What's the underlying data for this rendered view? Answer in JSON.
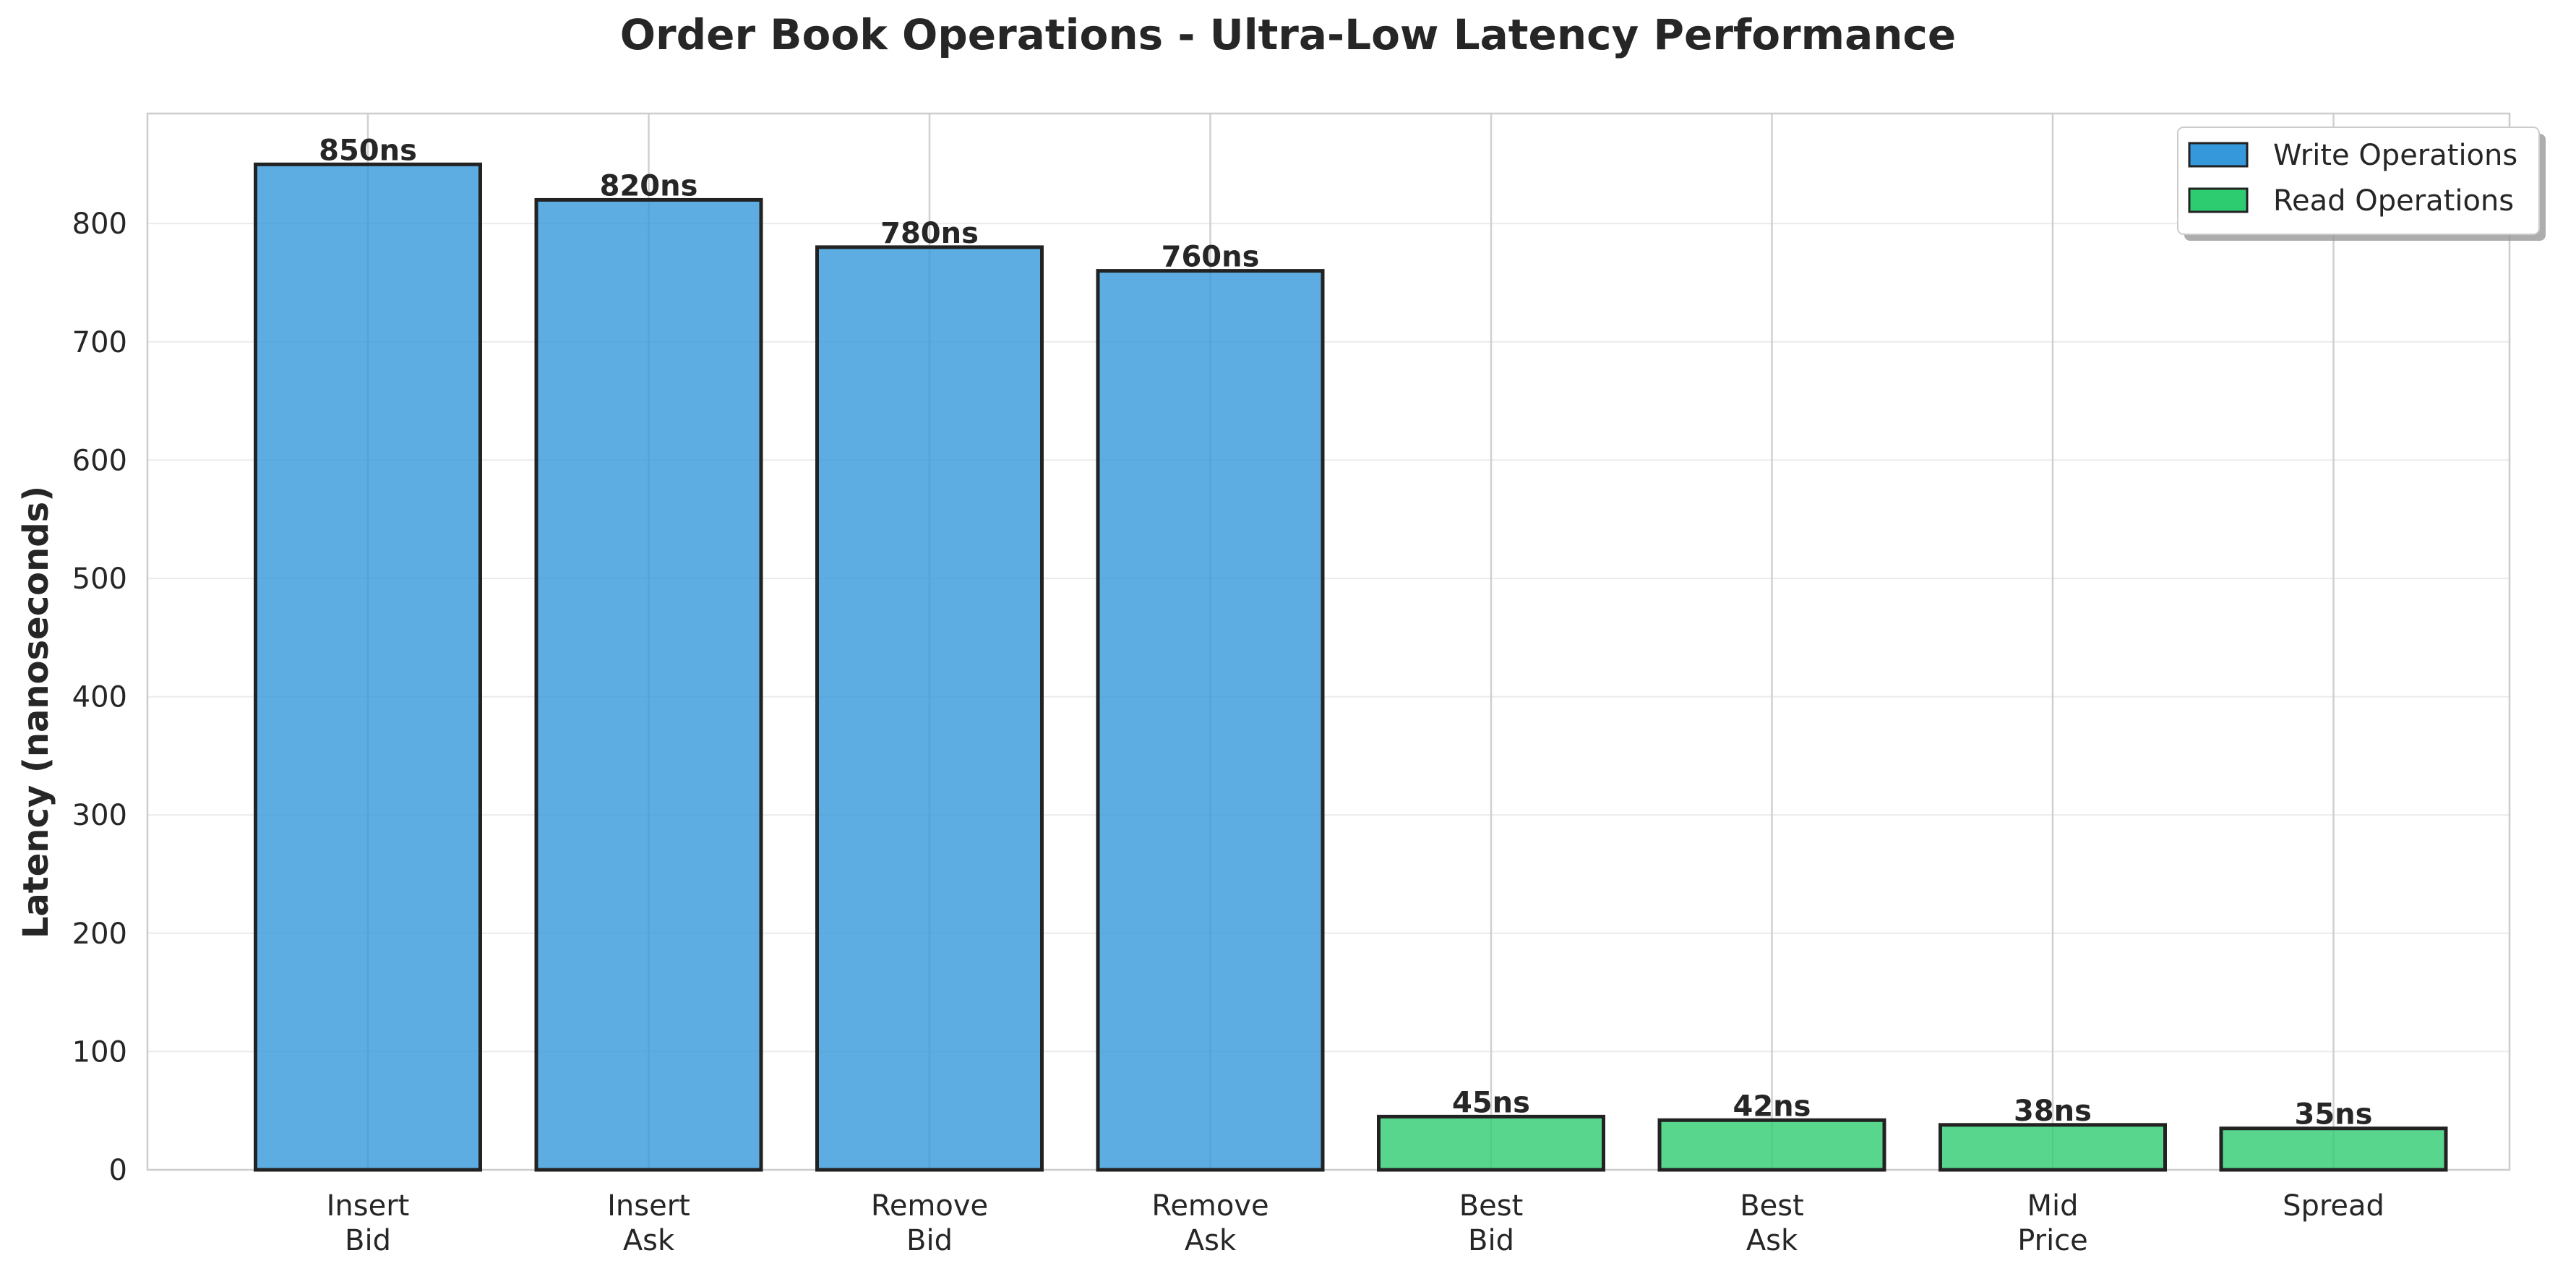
{
  "chart_data": {
    "type": "bar",
    "title": "Order Book Operations - Ultra-Low Latency Performance",
    "xlabel": "",
    "ylabel": "Latency (nanoseconds)",
    "ylim": [
      0,
      893
    ],
    "yticks": [
      0,
      100,
      200,
      300,
      400,
      500,
      600,
      700,
      800
    ],
    "categories": [
      [
        "Insert",
        "Bid"
      ],
      [
        "Insert",
        "Ask"
      ],
      [
        "Remove",
        "Bid"
      ],
      [
        "Remove",
        "Ask"
      ],
      [
        "Best",
        "Bid"
      ],
      [
        "Best",
        "Ask"
      ],
      [
        "Mid",
        "Price"
      ],
      [
        "Spread"
      ]
    ],
    "values": [
      850,
      820,
      780,
      760,
      45,
      42,
      38,
      35
    ],
    "value_labels": [
      "850ns",
      "820ns",
      "780ns",
      "760ns",
      "45ns",
      "42ns",
      "38ns",
      "35ns"
    ],
    "groups": [
      "write",
      "write",
      "write",
      "write",
      "read",
      "read",
      "read",
      "read"
    ],
    "series": [
      {
        "key": "write",
        "name": "Write Operations",
        "color": "#3498db"
      },
      {
        "key": "read",
        "name": "Read Operations",
        "color": "#2ecc71"
      }
    ],
    "grid": true,
    "legend_position": "top-right"
  }
}
